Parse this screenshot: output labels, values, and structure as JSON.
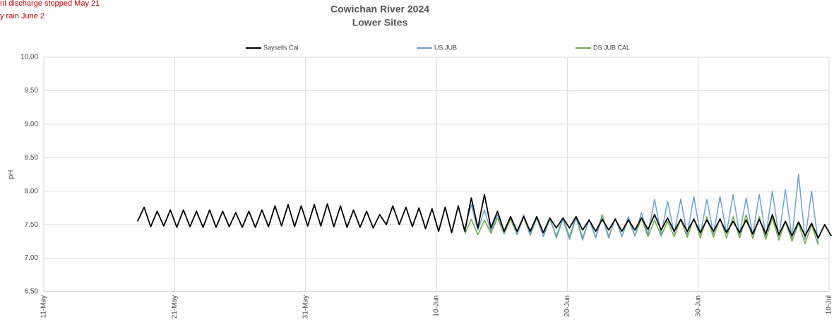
{
  "chart_data": {
    "type": "line",
    "title": "Cowichan River 2024",
    "subtitle": "Lower Sites",
    "annotations": [
      "nt discharge stopped May 21",
      "y rain June 2"
    ],
    "y_label": "pH",
    "x": [
      "2024-05-18T04:00",
      "2024-05-18T16:00",
      "2024-05-19T04:00",
      "2024-05-19T16:00",
      "2024-05-20T04:00",
      "2024-05-20T16:00",
      "2024-05-21T04:00",
      "2024-05-21T16:00",
      "2024-05-22T04:00",
      "2024-05-22T16:00",
      "2024-05-23T04:00",
      "2024-05-23T16:00",
      "2024-05-24T04:00",
      "2024-05-24T16:00",
      "2024-05-25T04:00",
      "2024-05-25T16:00",
      "2024-05-26T04:00",
      "2024-05-26T16:00",
      "2024-05-27T04:00",
      "2024-05-27T16:00",
      "2024-05-28T04:00",
      "2024-05-28T16:00",
      "2024-05-29T04:00",
      "2024-05-29T16:00",
      "2024-05-30T04:00",
      "2024-05-30T16:00",
      "2024-05-31T04:00",
      "2024-05-31T16:00",
      "2024-06-01T04:00",
      "2024-06-01T16:00",
      "2024-06-02T04:00",
      "2024-06-02T16:00",
      "2024-06-03T04:00",
      "2024-06-03T16:00",
      "2024-06-04T04:00",
      "2024-06-04T16:00",
      "2024-06-05T04:00",
      "2024-06-05T16:00",
      "2024-06-06T04:00",
      "2024-06-06T16:00",
      "2024-06-07T04:00",
      "2024-06-07T16:00",
      "2024-06-08T04:00",
      "2024-06-08T16:00",
      "2024-06-09T04:00",
      "2024-06-09T16:00",
      "2024-06-10T04:00",
      "2024-06-10T16:00",
      "2024-06-11T04:00",
      "2024-06-11T16:00",
      "2024-06-12T04:00",
      "2024-06-12T16:00",
      "2024-06-13T04:00",
      "2024-06-13T16:00",
      "2024-06-14T04:00",
      "2024-06-14T16:00",
      "2024-06-15T04:00",
      "2024-06-15T16:00",
      "2024-06-16T04:00",
      "2024-06-16T16:00",
      "2024-06-17T04:00",
      "2024-06-17T16:00",
      "2024-06-18T04:00",
      "2024-06-18T16:00",
      "2024-06-19T04:00",
      "2024-06-19T16:00",
      "2024-06-20T04:00",
      "2024-06-20T16:00",
      "2024-06-21T04:00",
      "2024-06-21T16:00",
      "2024-06-22T04:00",
      "2024-06-22T16:00",
      "2024-06-23T04:00",
      "2024-06-23T16:00",
      "2024-06-24T04:00",
      "2024-06-24T16:00",
      "2024-06-25T04:00",
      "2024-06-25T16:00",
      "2024-06-26T04:00",
      "2024-06-26T16:00",
      "2024-06-27T04:00",
      "2024-06-27T16:00",
      "2024-06-28T04:00",
      "2024-06-28T16:00",
      "2024-06-29T04:00",
      "2024-06-29T16:00",
      "2024-06-30T04:00",
      "2024-06-30T16:00",
      "2024-07-01T04:00",
      "2024-07-01T16:00",
      "2024-07-02T04:00",
      "2024-07-02T16:00",
      "2024-07-03T04:00",
      "2024-07-03T16:00",
      "2024-07-04T04:00",
      "2024-07-04T16:00",
      "2024-07-05T04:00",
      "2024-07-05T16:00",
      "2024-07-06T04:00",
      "2024-07-06T16:00",
      "2024-07-07T04:00",
      "2024-07-07T16:00",
      "2024-07-08T04:00",
      "2024-07-08T16:00",
      "2024-07-09T04:00",
      "2024-07-09T16:00",
      "2024-07-10T04:00"
    ],
    "series": [
      {
        "name": "Saysells Cal",
        "color": "#000000",
        "values": [
          7.55,
          7.76,
          7.47,
          7.7,
          7.48,
          7.72,
          7.46,
          7.72,
          7.47,
          7.7,
          7.46,
          7.72,
          7.46,
          7.7,
          7.47,
          7.68,
          7.46,
          7.7,
          7.46,
          7.72,
          7.47,
          7.78,
          7.48,
          7.8,
          7.47,
          7.78,
          7.48,
          7.8,
          7.48,
          7.81,
          7.47,
          7.78,
          7.46,
          7.72,
          7.46,
          7.7,
          7.45,
          7.65,
          7.5,
          7.78,
          7.5,
          7.76,
          7.47,
          7.75,
          7.44,
          7.74,
          7.4,
          7.76,
          7.38,
          7.78,
          7.4,
          7.9,
          7.45,
          7.95,
          7.45,
          7.7,
          7.4,
          7.62,
          7.4,
          7.62,
          7.4,
          7.62,
          7.38,
          7.6,
          7.45,
          7.6,
          7.45,
          7.62,
          7.42,
          7.57,
          7.4,
          7.58,
          7.42,
          7.58,
          7.4,
          7.57,
          7.42,
          7.6,
          7.43,
          7.65,
          7.42,
          7.6,
          7.4,
          7.58,
          7.4,
          7.58,
          7.38,
          7.57,
          7.4,
          7.58,
          7.38,
          7.55,
          7.38,
          7.57,
          7.36,
          7.58,
          7.36,
          7.65,
          7.35,
          7.55,
          7.33,
          7.54,
          7.33,
          7.52,
          7.3,
          7.5,
          7.33
        ]
      },
      {
        "name": "US JUB",
        "color": "#6f9fd4",
        "values": [
          null,
          null,
          null,
          null,
          null,
          null,
          null,
          null,
          null,
          null,
          null,
          null,
          null,
          null,
          null,
          null,
          null,
          null,
          null,
          null,
          null,
          null,
          null,
          null,
          null,
          null,
          null,
          null,
          null,
          null,
          null,
          null,
          null,
          null,
          null,
          null,
          null,
          null,
          null,
          null,
          null,
          null,
          null,
          null,
          null,
          null,
          null,
          null,
          null,
          null,
          7.45,
          7.8,
          7.42,
          7.72,
          7.4,
          7.65,
          7.38,
          7.62,
          7.35,
          7.65,
          7.35,
          7.62,
          7.32,
          7.6,
          7.3,
          7.58,
          7.28,
          7.6,
          7.27,
          7.58,
          7.3,
          7.62,
          7.3,
          7.6,
          7.32,
          7.62,
          7.33,
          7.68,
          7.35,
          7.88,
          7.35,
          7.85,
          7.37,
          7.88,
          7.35,
          7.92,
          7.35,
          7.88,
          7.36,
          7.92,
          7.37,
          7.95,
          7.35,
          7.9,
          7.35,
          7.95,
          7.33,
          8.0,
          7.32,
          8.02,
          7.3,
          8.25,
          7.28,
          8.0,
          7.22,
          null,
          null
        ]
      },
      {
        "name": "DS JUB CAL",
        "color": "#70ad47",
        "values": [
          null,
          null,
          null,
          null,
          null,
          null,
          null,
          null,
          null,
          null,
          null,
          null,
          null,
          null,
          null,
          null,
          null,
          null,
          null,
          null,
          null,
          null,
          null,
          null,
          null,
          null,
          null,
          null,
          null,
          null,
          null,
          null,
          null,
          null,
          null,
          null,
          null,
          null,
          null,
          null,
          null,
          null,
          null,
          null,
          null,
          null,
          null,
          null,
          null,
          null,
          7.36,
          7.58,
          7.35,
          7.57,
          7.37,
          7.6,
          7.36,
          7.58,
          7.35,
          7.62,
          7.34,
          7.6,
          7.33,
          7.58,
          7.33,
          7.6,
          7.32,
          7.62,
          7.3,
          7.58,
          7.31,
          7.65,
          7.32,
          7.6,
          7.32,
          7.58,
          7.33,
          7.6,
          7.32,
          7.57,
          7.33,
          7.55,
          7.32,
          7.58,
          7.31,
          7.6,
          7.3,
          7.62,
          7.31,
          7.6,
          7.3,
          7.62,
          7.3,
          7.65,
          7.29,
          7.62,
          7.28,
          7.6,
          7.27,
          7.55,
          7.25,
          7.52,
          7.22,
          7.5,
          7.2,
          null,
          null
        ]
      }
    ],
    "xlim": [
      "2024-05-11T00:00",
      "2024-07-10T00:00"
    ],
    "xticks": [
      {
        "value": "2024-05-11T00:00",
        "label": "11-May"
      },
      {
        "value": "2024-05-21T00:00",
        "label": "21-May"
      },
      {
        "value": "2024-05-31T00:00",
        "label": "31-May"
      },
      {
        "value": "2024-06-10T00:00",
        "label": "10-Jun"
      },
      {
        "value": "2024-06-20T00:00",
        "label": "20-Jun"
      },
      {
        "value": "2024-06-30T00:00",
        "label": "30-Jun"
      },
      {
        "value": "2024-07-10T00:00",
        "label": "10-Jul"
      }
    ],
    "ylim": [
      6.5,
      10
    ],
    "yticks": [
      {
        "value": 6.5,
        "label": "6.50"
      },
      {
        "value": 7,
        "label": "7.00"
      },
      {
        "value": 7.5,
        "label": "7.50"
      },
      {
        "value": 8,
        "label": "8.00"
      },
      {
        "value": 8.5,
        "label": "8.50"
      },
      {
        "value": 9,
        "label": "9.00"
      },
      {
        "value": 9.5,
        "label": "9.50"
      },
      {
        "value": 10,
        "label": "10.00"
      }
    ],
    "grid": true,
    "legend": "top"
  }
}
